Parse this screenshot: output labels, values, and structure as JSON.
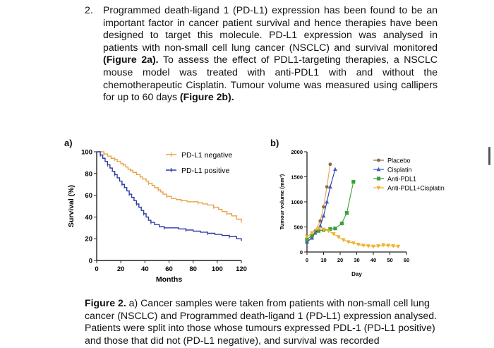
{
  "question": {
    "number": "2.",
    "line1": "Programmed death-ligand 1 (PD-L1) expression has been found to be an important factor in cancer patient survival and hence therapies have been designed to target this molecule.  PD-L1 expression was analysed in patients with non-small cell lung cancer (NSCLC) and survival monitored ",
    "fig2a": "(Figure 2a).",
    "line2": "  To assess the effect of PDL1-targeting therapies, a NSCLC mouse model was treated with anti-PDL1 with and without the chemotherapeutic Cisplatin.  Tumour volume was measured using callipers for up to 60 days ",
    "fig2b": "(Figure 2b)."
  },
  "panel_a_label": "a)",
  "panel_b_label": "b)",
  "caption": {
    "bold": "Figure 2.",
    "text": " a) Cancer samples were taken from patients with non-small cell lung cancer (NSCLC) and Programmed death-ligand 1 (PD-L1) expression analysed.  Patients were split into those whose tumours expressed PDL-1 (PD-L1 positive) and those that did not (PD-L1 negative), and survival was recorded"
  },
  "chart_data": [
    {
      "type": "line",
      "subtype": "kaplan-meier",
      "xlabel": "Months",
      "ylabel": "Survival (%)",
      "xlim": [
        0,
        120
      ],
      "ylim": [
        0,
        100
      ],
      "xticks": [
        "0",
        "20",
        "40",
        "60",
        "80",
        "100",
        "120"
      ],
      "yticks": [
        "0",
        "20",
        "40",
        "60",
        "80",
        "100"
      ],
      "legend_position": "top-right",
      "series": [
        {
          "name": "PD-L1 negative",
          "color": "#e8a24a",
          "x": [
            0,
            6,
            9,
            12,
            15,
            17,
            20,
            22,
            24,
            26,
            28,
            30,
            33,
            36,
            38,
            41,
            43,
            46,
            48,
            51,
            53,
            55,
            58,
            62,
            66,
            70,
            75,
            80,
            84,
            88,
            92,
            97,
            101,
            104,
            108,
            112,
            116,
            120
          ],
          "y": [
            100,
            98,
            96,
            94,
            93,
            91,
            89,
            88,
            86,
            84,
            83,
            81,
            79,
            77,
            75,
            73,
            71,
            69,
            67,
            65,
            63,
            61,
            59,
            57,
            56,
            55,
            54,
            54,
            53,
            52,
            51,
            49,
            47,
            45,
            43,
            41,
            38,
            36
          ]
        },
        {
          "name": "PD-L1 positive",
          "color": "#2b3aa0",
          "x": [
            0,
            3,
            5,
            7,
            9,
            11,
            13,
            15,
            17,
            19,
            21,
            23,
            25,
            27,
            29,
            31,
            33,
            35,
            37,
            39,
            41,
            43,
            45,
            48,
            52,
            56,
            62,
            68,
            74,
            80,
            86,
            92,
            98,
            104,
            110,
            116,
            120
          ],
          "y": [
            100,
            97,
            94,
            91,
            88,
            85,
            82,
            79,
            76,
            73,
            70,
            67,
            64,
            61,
            58,
            55,
            52,
            49,
            46,
            43,
            40,
            37,
            35,
            33,
            31,
            30,
            30,
            29,
            28,
            27,
            26,
            25,
            24,
            23,
            22,
            20,
            18
          ]
        }
      ]
    },
    {
      "type": "line",
      "xlabel": "Day",
      "ylabel": "Tumour volume (mm³)",
      "xlim": [
        0,
        60
      ],
      "ylim": [
        0,
        2000
      ],
      "xticks": [
        "0",
        "10",
        "20",
        "30",
        "40",
        "50",
        "60"
      ],
      "yticks": [
        "0",
        "500",
        "1000",
        "1500",
        "2000"
      ],
      "legend_position": "right",
      "series": [
        {
          "name": "Placebo",
          "color": "#8a6a4a",
          "marker": "circle",
          "x": [
            0,
            3,
            5,
            8,
            10,
            12,
            14
          ],
          "y": [
            200,
            300,
            420,
            620,
            900,
            1300,
            1750
          ]
        },
        {
          "name": "Cisplatin",
          "color": "#3b5fc0",
          "marker": "triangle-up",
          "x": [
            0,
            3,
            5,
            8,
            10,
            12,
            14,
            17
          ],
          "y": [
            200,
            280,
            380,
            520,
            720,
            1000,
            1300,
            1650
          ]
        },
        {
          "name": "Anti-PDL1",
          "color": "#3aa03a",
          "marker": "square",
          "x": [
            0,
            3,
            7,
            10,
            14,
            17,
            21,
            24,
            28
          ],
          "y": [
            250,
            330,
            420,
            440,
            460,
            470,
            570,
            780,
            1400
          ]
        },
        {
          "name": "Anti-PDL1+Cisplatin",
          "color": "#f0b030",
          "marker": "triangle-down",
          "x": [
            0,
            3,
            7,
            10,
            13,
            16,
            19,
            22,
            25,
            28,
            31,
            34,
            37,
            40,
            43,
            46,
            49,
            52,
            55
          ],
          "y": [
            300,
            380,
            470,
            450,
            420,
            360,
            300,
            240,
            200,
            180,
            150,
            130,
            120,
            110,
            120,
            140,
            130,
            120,
            110
          ]
        }
      ]
    }
  ]
}
